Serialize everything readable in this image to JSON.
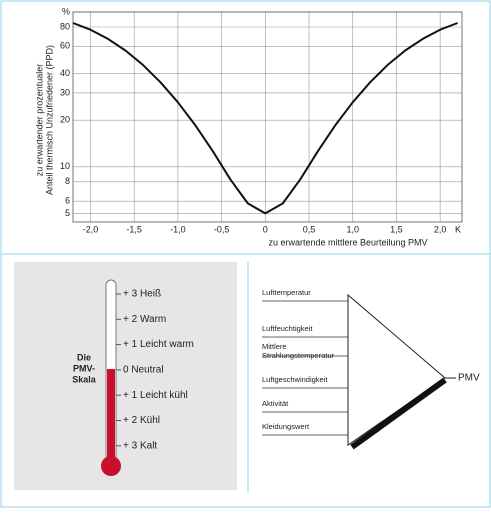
{
  "chart_data": {
    "type": "line",
    "y_label": [
      "zu erwartender prozentualer",
      "Anteil thermisch Unzufriedener (PPD)"
    ],
    "x_label": "zu erwartende mittlere Beurteilung PMV",
    "x_unit": "K",
    "x": [
      -2.2,
      -2.0,
      -1.8,
      -1.6,
      -1.4,
      -1.2,
      -1.0,
      -0.8,
      -0.6,
      -0.4,
      -0.2,
      0,
      0.2,
      0.4,
      0.6,
      0.8,
      1.0,
      1.2,
      1.4,
      1.6,
      1.8,
      2.0,
      2.2
    ],
    "values": [
      84.9,
      76.8,
      67.0,
      56.4,
      45.5,
      35.2,
      26.1,
      18.5,
      12.6,
      8.3,
      5.8,
      5,
      5.8,
      8.3,
      12.6,
      18.5,
      26.1,
      35.2,
      45.5,
      56.4,
      67.0,
      76.8,
      84.9
    ],
    "color": "#111111",
    "xlim": [
      -2.2,
      2.25
    ],
    "ylim": [
      4.4,
      100
    ],
    "ylog": true,
    "grid": true,
    "xticks": [
      {
        "value": -2.0,
        "label": "-2,0"
      },
      {
        "value": -1.5,
        "label": "-1,5"
      },
      {
        "value": -1.0,
        "label": "-1,0"
      },
      {
        "value": -0.5,
        "label": "-0,5"
      },
      0,
      {
        "value": 0.5,
        "label": "0,5"
      },
      {
        "value": 1.0,
        "label": "1,0"
      },
      {
        "value": 1.5,
        "label": "1,5"
      },
      {
        "value": 2.0,
        "label": "2,0"
      }
    ],
    "yticks": [
      5,
      6,
      8,
      10,
      20,
      30,
      40,
      60,
      80,
      {
        "value": 100,
        "label": "%"
      }
    ]
  },
  "thermometer": {
    "title": [
      "Die",
      "PMV-",
      "Skala"
    ],
    "levels": [
      "+ 3 Heiß",
      "+ 2 Warm",
      "+ 1 Leicht warm",
      "0 Neutral",
      "+ 1 Leicht kühl",
      "+ 2 Kühl",
      "+ 3 Kalt"
    ]
  },
  "diagram": {
    "inputs": [
      "Lufttemperatur",
      "Luftfeuchtigkeit",
      [
        "Mittlere",
        "Strahlungstemperatur"
      ],
      "Luftgeschwindigkeit",
      "Aktivität",
      "Kleidungswert"
    ],
    "output": "PMV"
  }
}
